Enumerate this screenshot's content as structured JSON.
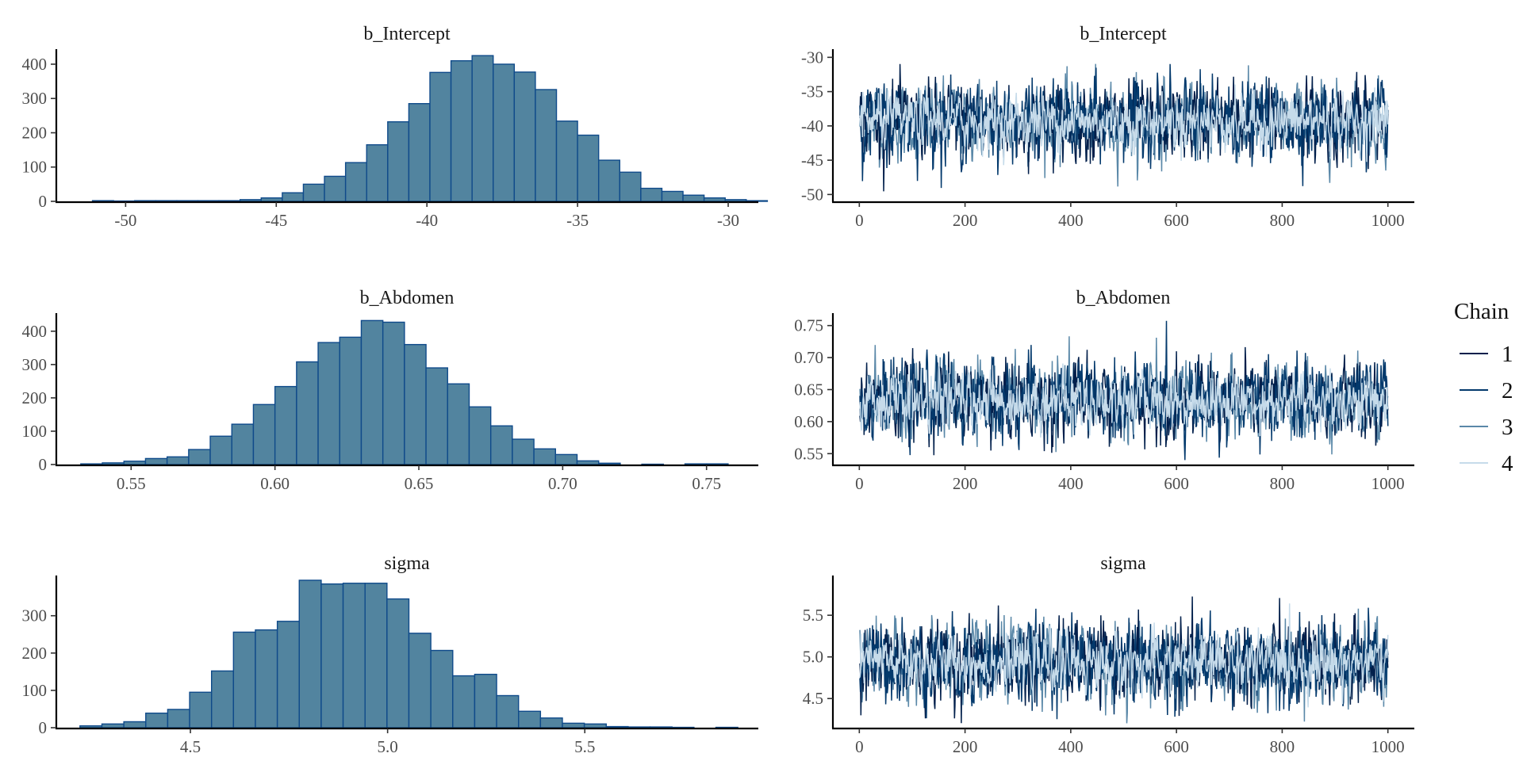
{
  "chart_data": [
    {
      "type": "bar",
      "panel": "histogram",
      "title": "b_Intercept",
      "xlim": [
        -52.3,
        -29.0
      ],
      "ylim": [
        0,
        430
      ],
      "xticks": [
        -50,
        -45,
        -40,
        -35,
        -30
      ],
      "xtick_labels": [
        "-50",
        "-45",
        "-40",
        "-35",
        "-30"
      ],
      "yticks": [
        0,
        100,
        200,
        300,
        400
      ],
      "ytick_labels": [
        "0",
        "100",
        "200",
        "300",
        "400"
      ],
      "bin_start": -51.1,
      "bin_width": 0.7,
      "values": [
        2,
        1,
        2,
        2,
        2,
        2,
        2,
        5,
        10,
        25,
        50,
        73,
        113,
        165,
        232,
        285,
        376,
        410,
        425,
        400,
        377,
        326,
        234,
        193,
        120,
        85,
        38,
        29,
        18,
        10,
        5,
        2
      ]
    },
    {
      "type": "line",
      "panel": "trace",
      "title": "b_Intercept",
      "xlim": [
        -50,
        1050
      ],
      "ylim": [
        -51,
        -29.5
      ],
      "xticks": [
        0,
        200,
        400,
        600,
        800,
        1000
      ],
      "xtick_labels": [
        "0",
        "200",
        "400",
        "600",
        "800",
        "1000"
      ],
      "yticks": [
        -50,
        -45,
        -40,
        -35,
        -30
      ],
      "ytick_labels": [
        "-50",
        "-45",
        "-40",
        "-35",
        "-30"
      ],
      "iterations": 1000,
      "mean": -39.3,
      "sd": 2.7,
      "series": [
        {
          "name": "1"
        },
        {
          "name": "2"
        },
        {
          "name": "3"
        },
        {
          "name": "4"
        }
      ]
    },
    {
      "type": "bar",
      "panel": "histogram",
      "title": "b_Abdomen",
      "xlim": [
        0.524,
        0.768
      ],
      "ylim": [
        0,
        440
      ],
      "xticks": [
        0.55,
        0.6,
        0.65,
        0.7,
        0.75
      ],
      "xtick_labels": [
        "0.55",
        "0.60",
        "0.65",
        "0.70",
        "0.75"
      ],
      "yticks": [
        0,
        100,
        200,
        300,
        400
      ],
      "ytick_labels": [
        "0",
        "100",
        "200",
        "300",
        "400"
      ],
      "bin_start": 0.5325,
      "bin_width": 0.0075,
      "values": [
        2,
        5,
        10,
        18,
        23,
        45,
        85,
        121,
        180,
        234,
        308,
        366,
        382,
        432,
        427,
        360,
        290,
        242,
        173,
        116,
        76,
        47,
        30,
        11,
        4,
        0,
        1,
        0,
        2,
        2
      ]
    },
    {
      "type": "line",
      "panel": "trace",
      "title": "b_Abdomen",
      "xlim": [
        -50,
        1050
      ],
      "ylim": [
        0.533,
        0.762
      ],
      "xticks": [
        0,
        200,
        400,
        600,
        800,
        1000
      ],
      "xtick_labels": [
        "0",
        "200",
        "400",
        "600",
        "800",
        "1000"
      ],
      "yticks": [
        0.55,
        0.6,
        0.65,
        0.7,
        0.75
      ],
      "ytick_labels": [
        "0.55",
        "0.60",
        "0.65",
        "0.70",
        "0.75"
      ],
      "iterations": 1000,
      "mean": 0.633,
      "sd": 0.029,
      "series": [
        {
          "name": "1"
        },
        {
          "name": "2"
        },
        {
          "name": "3"
        },
        {
          "name": "4"
        }
      ]
    },
    {
      "type": "bar",
      "panel": "histogram",
      "title": "sigma",
      "xlim": [
        4.16,
        5.94
      ],
      "ylim": [
        0,
        395
      ],
      "xticks": [
        4.5,
        5.0,
        5.5
      ],
      "xtick_labels": [
        "4.5",
        "5.0",
        "5.5"
      ],
      "yticks": [
        0,
        100,
        200,
        300
      ],
      "ytick_labels": [
        "0",
        "100",
        "200",
        "300"
      ],
      "bin_start": 4.22,
      "bin_width": 0.0556,
      "values": [
        5,
        10,
        16,
        39,
        49,
        95,
        152,
        256,
        262,
        285,
        395,
        385,
        387,
        387,
        345,
        253,
        207,
        139,
        143,
        86,
        44,
        26,
        12,
        10,
        3,
        2,
        2,
        1,
        0,
        1
      ]
    },
    {
      "type": "line",
      "panel": "trace",
      "title": "sigma",
      "xlim": [
        -50,
        1050
      ],
      "ylim": [
        4.15,
        5.92
      ],
      "xticks": [
        0,
        200,
        400,
        600,
        800,
        1000
      ],
      "xtick_labels": [
        "0",
        "200",
        "400",
        "600",
        "800",
        "1000"
      ],
      "yticks": [
        4.5,
        5.0,
        5.5
      ],
      "ytick_labels": [
        "4.5",
        "5.0",
        "5.5"
      ],
      "iterations": 1000,
      "mean": 4.93,
      "sd": 0.23,
      "series": [
        {
          "name": "1"
        },
        {
          "name": "2"
        },
        {
          "name": "3"
        },
        {
          "name": "4"
        }
      ]
    }
  ],
  "legend": {
    "title": "Chain",
    "items": [
      {
        "label": "1",
        "color": "#011f4b"
      },
      {
        "label": "2",
        "color": "#03396c"
      },
      {
        "label": "3",
        "color": "#5a88a8"
      },
      {
        "label": "4",
        "color": "#c6dbea"
      }
    ]
  },
  "colors": {
    "bar_fill": "#52849f",
    "bar_outline": "#0f4a8a"
  }
}
